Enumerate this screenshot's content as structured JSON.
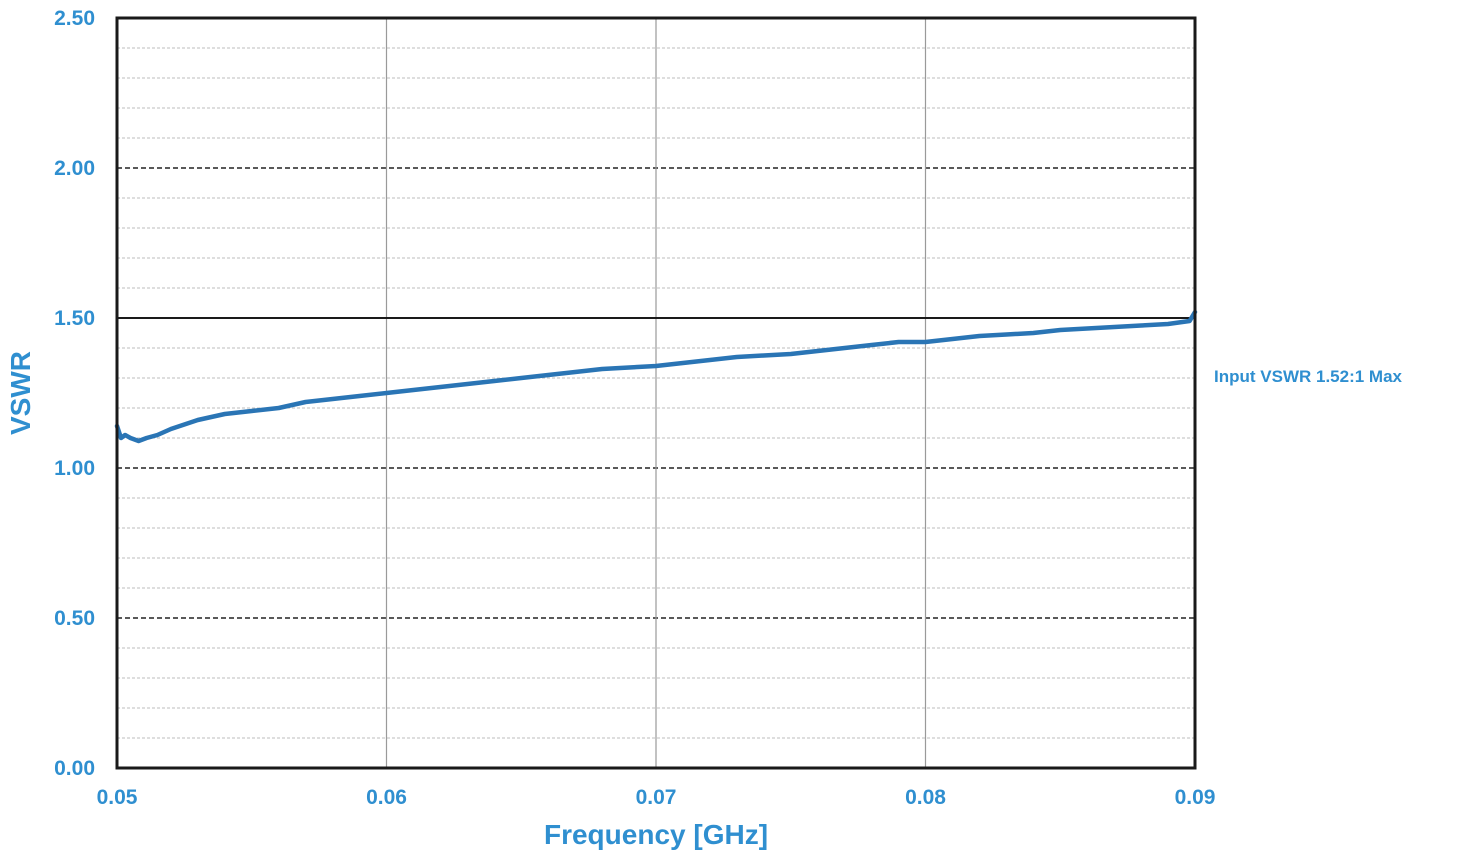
{
  "chart_data": {
    "type": "line",
    "title": "",
    "xlabel": "Frequency [GHz]",
    "ylabel": "VSWR",
    "xlim": [
      0.05,
      0.09
    ],
    "ylim": [
      0.0,
      2.5
    ],
    "x_ticks": [
      "0.05",
      "0.06",
      "0.07",
      "0.08",
      "0.09"
    ],
    "y_ticks": [
      "0.00",
      "0.50",
      "1.00",
      "1.50",
      "2.00",
      "2.50"
    ],
    "grid": true,
    "legend": "none",
    "annotation": "Input VSWR 1.52:1 Max",
    "reference_line_y": 1.5,
    "colors": {
      "text": "#2f8fd0",
      "series": "#2a75b5",
      "frame": "#1a1a1a",
      "grid_major": "#222222",
      "grid_minor": "#bdbdbd"
    },
    "series": [
      {
        "x": [
          0.05,
          0.05015,
          0.0503,
          0.0505,
          0.0508,
          0.0511,
          0.0515,
          0.052,
          0.053,
          0.054,
          0.055,
          0.056,
          0.057,
          0.058,
          0.059,
          0.06,
          0.061,
          0.062,
          0.063,
          0.064,
          0.065,
          0.066,
          0.067,
          0.068,
          0.069,
          0.07,
          0.071,
          0.072,
          0.073,
          0.074,
          0.075,
          0.076,
          0.077,
          0.078,
          0.079,
          0.08,
          0.081,
          0.082,
          0.083,
          0.084,
          0.085,
          0.086,
          0.087,
          0.088,
          0.089,
          0.0898,
          0.09
        ],
        "y": [
          1.14,
          1.1,
          1.11,
          1.1,
          1.09,
          1.1,
          1.11,
          1.13,
          1.16,
          1.18,
          1.19,
          1.2,
          1.22,
          1.23,
          1.24,
          1.25,
          1.26,
          1.27,
          1.28,
          1.29,
          1.3,
          1.31,
          1.32,
          1.33,
          1.335,
          1.34,
          1.35,
          1.36,
          1.37,
          1.375,
          1.38,
          1.39,
          1.4,
          1.41,
          1.42,
          1.42,
          1.43,
          1.44,
          1.445,
          1.45,
          1.46,
          1.465,
          1.47,
          1.475,
          1.48,
          1.49,
          1.52
        ]
      }
    ]
  }
}
